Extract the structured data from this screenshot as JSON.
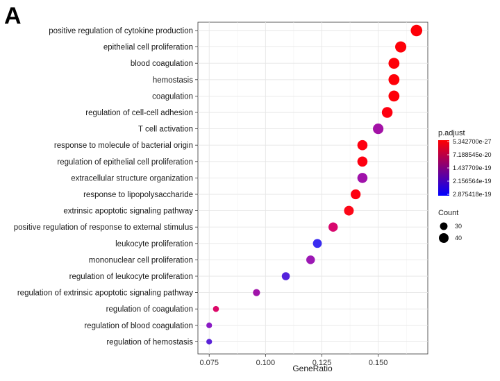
{
  "panel_label": "A",
  "chart_data": {
    "type": "scatter",
    "xlabel": "GeneRatio",
    "xlim": [
      0.07,
      0.172
    ],
    "x_ticks": [
      "0.075",
      "0.100",
      "0.125",
      "0.150"
    ],
    "x_tick_values": [
      0.075,
      0.1,
      0.125,
      0.15
    ],
    "grid": true,
    "terms": [
      {
        "label": "positive regulation of cytokine production",
        "gene_ratio": 0.167,
        "count": 49,
        "p_adjust": 5.4e-27,
        "color": "#fe0008"
      },
      {
        "label": "epithelial cell proliferation",
        "gene_ratio": 0.16,
        "count": 47,
        "p_adjust": 6e-27,
        "color": "#fe0008"
      },
      {
        "label": "blood coagulation",
        "gene_ratio": 0.157,
        "count": 46,
        "p_adjust": 8e-27,
        "color": "#fe0008"
      },
      {
        "label": "hemostasis",
        "gene_ratio": 0.157,
        "count": 46,
        "p_adjust": 8e-27,
        "color": "#fe0008"
      },
      {
        "label": "coagulation",
        "gene_ratio": 0.157,
        "count": 46,
        "p_adjust": 8e-27,
        "color": "#fe0008"
      },
      {
        "label": "regulation of cell-cell adhesion",
        "gene_ratio": 0.154,
        "count": 45,
        "p_adjust": 1e-26,
        "color": "#fe0010"
      },
      {
        "label": "T cell activation",
        "gene_ratio": 0.15,
        "count": 44,
        "p_adjust": 1.6e-19,
        "color": "#a312a6"
      },
      {
        "label": "response to molecule of bacterial origin",
        "gene_ratio": 0.143,
        "count": 42,
        "p_adjust": 2e-26,
        "color": "#fe0010"
      },
      {
        "label": "regulation of epithelial cell proliferation",
        "gene_ratio": 0.143,
        "count": 42,
        "p_adjust": 2e-26,
        "color": "#fe0010"
      },
      {
        "label": "extracellular structure organization",
        "gene_ratio": 0.143,
        "count": 42,
        "p_adjust": 1.6e-19,
        "color": "#a012aa"
      },
      {
        "label": "response to lipopolysaccharide",
        "gene_ratio": 0.14,
        "count": 41,
        "p_adjust": 3e-26,
        "color": "#fe0010"
      },
      {
        "label": "extrinsic apoptotic signaling pathway",
        "gene_ratio": 0.137,
        "count": 40,
        "p_adjust": 4e-26,
        "color": "#fc0818"
      },
      {
        "label": "positive regulation of response to external stimulus",
        "gene_ratio": 0.13,
        "count": 38,
        "p_adjust": 7.2e-20,
        "color": "#d8086e"
      },
      {
        "label": "leukocyte proliferation",
        "gene_ratio": 0.123,
        "count": 36,
        "p_adjust": 2.8e-19,
        "color": "#3a2cf0"
      },
      {
        "label": "mononuclear cell proliferation",
        "gene_ratio": 0.12,
        "count": 35,
        "p_adjust": 1.8e-19,
        "color": "#9c18b4"
      },
      {
        "label": "regulation of leukocyte proliferation",
        "gene_ratio": 0.109,
        "count": 32,
        "p_adjust": 2.5e-19,
        "color": "#5422dc"
      },
      {
        "label": "regulation of extrinsic apoptotic signaling pathway",
        "gene_ratio": 0.096,
        "count": 28,
        "p_adjust": 1.6e-19,
        "color": "#a014aa"
      },
      {
        "label": "regulation of coagulation",
        "gene_ratio": 0.078,
        "count": 23,
        "p_adjust": 7e-20,
        "color": "#dc0868"
      },
      {
        "label": "regulation of blood coagulation",
        "gene_ratio": 0.075,
        "count": 22,
        "p_adjust": 1.9e-19,
        "color": "#8a1ac4"
      },
      {
        "label": "regulation of hemostasis",
        "gene_ratio": 0.075,
        "count": 22,
        "p_adjust": 2.5e-19,
        "color": "#5a22d8"
      }
    ],
    "legend": {
      "color_title": "p.adjust",
      "color_scale": [
        "#ff0000",
        "#0000ff"
      ],
      "color_labels": [
        "5.342700e-27",
        "7.188545e-20",
        "1.437709e-19",
        "2.156564e-19",
        "2.875418e-19"
      ],
      "color_range": [
        5.3427e-27,
        2.875418e-19
      ],
      "size_title": "Count",
      "size_labels": [
        "30",
        "40"
      ],
      "size_values": [
        30,
        40
      ],
      "placement": "right"
    }
  }
}
